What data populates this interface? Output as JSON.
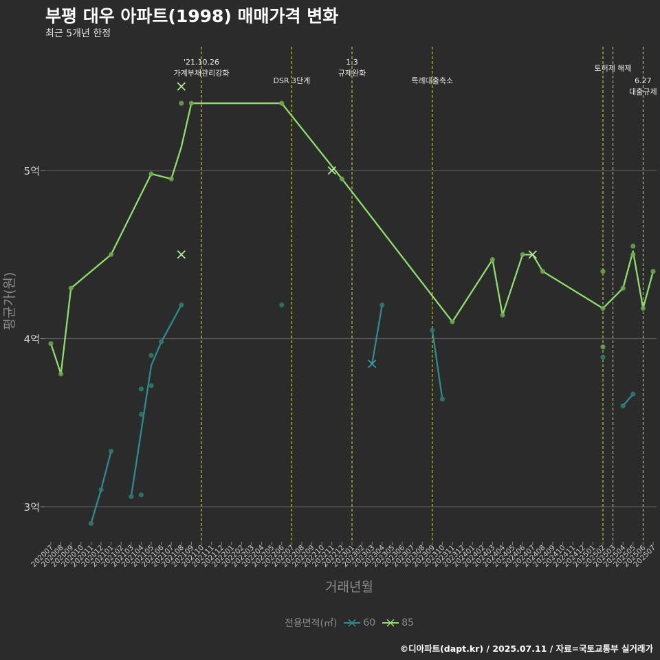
{
  "header": {
    "title": "부평 대우 아파트(1998) 매매가격 변화",
    "subtitle": "최근 5개년 한정"
  },
  "caption": "©디아파트(dapt.kr) / 2025.07.11 / 자료=국토교통부 실거래가",
  "colors": {
    "background": "#2b2b2b",
    "grid": "#5a5a5a",
    "event_line": "#e0e03c",
    "series_60": "#2a8e8f",
    "series_85": "#8fe06b",
    "point_60": "#2e7c6e",
    "point_85": "#6ca84c"
  },
  "chart_data": {
    "type": "line",
    "title": "부평 대우 아파트(1998) 매매가격 변화",
    "xlabel": "거래년월",
    "ylabel": "평균가(원)",
    "ylim": [
      2.8,
      5.8
    ],
    "yticks": [
      {
        "value": 3,
        "label": "3억"
      },
      {
        "value": 4,
        "label": "4억"
      },
      {
        "value": 5,
        "label": "5억"
      }
    ],
    "categories": [
      "202007",
      "202008",
      "202009",
      "202010",
      "202011",
      "202012",
      "202101",
      "202102",
      "202103",
      "202104",
      "202105",
      "202106",
      "202107",
      "202108",
      "202109",
      "202110",
      "202111",
      "202112",
      "202201",
      "202202",
      "202203",
      "202204",
      "202205",
      "202206",
      "202207",
      "202208",
      "202209",
      "202210",
      "202211",
      "202212",
      "202301",
      "202302",
      "202303",
      "202304",
      "202305",
      "202306",
      "202307",
      "202308",
      "202309",
      "202310",
      "202311",
      "202312",
      "202401",
      "202402",
      "202403",
      "202404",
      "202405",
      "202406",
      "202407",
      "202408",
      "202409",
      "202410",
      "202411",
      "202412",
      "202501",
      "202502",
      "202503",
      "202504",
      "202505",
      "202506",
      "202507"
    ],
    "legend_title": "전용면적(㎡)",
    "series": [
      {
        "name": "60",
        "line": [
          {
            "x": "202011",
            "y": 2.9
          },
          {
            "x": "202012",
            "y": 3.1
          },
          {
            "x": "202101",
            "y": 3.33
          }
        ],
        "line_segments": [
          [
            {
              "x": "202011",
              "y": 2.9
            },
            {
              "x": "202012",
              "y": 3.1
            },
            {
              "x": "202101",
              "y": 3.33
            }
          ],
          [
            {
              "x": "202103",
              "y": 3.06
            },
            {
              "x": "202104",
              "y": 3.45
            },
            {
              "x": "202105",
              "y": 3.84
            },
            {
              "x": "202106",
              "y": 3.98
            },
            {
              "x": "202108",
              "y": 4.2
            }
          ],
          [
            {
              "x": "202303",
              "y": 3.85
            },
            {
              "x": "202304",
              "y": 4.2
            }
          ],
          [
            {
              "x": "202309",
              "y": 4.05
            },
            {
              "x": "202310",
              "y": 3.64
            }
          ],
          [
            {
              "x": "202504",
              "y": 3.6
            },
            {
              "x": "202505",
              "y": 3.67
            }
          ]
        ],
        "points": [
          {
            "x": "202011",
            "y": 2.9
          },
          {
            "x": "202012",
            "y": 3.1
          },
          {
            "x": "202101",
            "y": 3.33
          },
          {
            "x": "202103",
            "y": 3.06
          },
          {
            "x": "202104",
            "y": 3.07
          },
          {
            "x": "202104",
            "y": 3.55
          },
          {
            "x": "202104",
            "y": 3.7
          },
          {
            "x": "202105",
            "y": 3.72
          },
          {
            "x": "202105",
            "y": 3.9
          },
          {
            "x": "202106",
            "y": 3.98
          },
          {
            "x": "202108",
            "y": 4.2
          },
          {
            "x": "202206",
            "y": 4.2
          },
          {
            "x": "202304",
            "y": 4.2
          },
          {
            "x": "202309",
            "y": 4.05
          },
          {
            "x": "202310",
            "y": 3.64
          },
          {
            "x": "202502",
            "y": 3.89
          },
          {
            "x": "202504",
            "y": 3.6
          },
          {
            "x": "202505",
            "y": 3.67
          }
        ],
        "crosses": [
          {
            "x": "202303",
            "y": 3.85
          }
        ]
      },
      {
        "name": "85",
        "line": [
          {
            "x": "202007",
            "y": 3.97
          },
          {
            "x": "202008",
            "y": 3.79
          },
          {
            "x": "202009",
            "y": 4.3
          },
          {
            "x": "202101",
            "y": 4.5
          },
          {
            "x": "202105",
            "y": 4.98
          },
          {
            "x": "202107",
            "y": 4.95
          },
          {
            "x": "202108",
            "y": 5.14
          },
          {
            "x": "202109",
            "y": 5.4
          },
          {
            "x": "202206",
            "y": 5.4
          },
          {
            "x": "202212",
            "y": 4.95
          },
          {
            "x": "202311",
            "y": 4.1
          },
          {
            "x": "202403",
            "y": 4.47
          },
          {
            "x": "202404",
            "y": 4.14
          },
          {
            "x": "202406",
            "y": 4.5
          },
          {
            "x": "202407",
            "y": 4.5
          },
          {
            "x": "202408",
            "y": 4.4
          },
          {
            "x": "202502",
            "y": 4.18
          },
          {
            "x": "202504",
            "y": 4.3
          },
          {
            "x": "202505",
            "y": 4.52
          },
          {
            "x": "202506",
            "y": 4.18
          },
          {
            "x": "202507",
            "y": 4.4
          }
        ],
        "points": [
          {
            "x": "202007",
            "y": 3.97
          },
          {
            "x": "202008",
            "y": 3.79
          },
          {
            "x": "202009",
            "y": 4.3
          },
          {
            "x": "202101",
            "y": 4.5
          },
          {
            "x": "202105",
            "y": 4.98
          },
          {
            "x": "202107",
            "y": 4.95
          },
          {
            "x": "202108",
            "y": 5.4
          },
          {
            "x": "202109",
            "y": 5.4
          },
          {
            "x": "202206",
            "y": 5.4
          },
          {
            "x": "202212",
            "y": 4.95
          },
          {
            "x": "202311",
            "y": 4.1
          },
          {
            "x": "202403",
            "y": 4.47
          },
          {
            "x": "202404",
            "y": 4.14
          },
          {
            "x": "202406",
            "y": 4.5
          },
          {
            "x": "202408",
            "y": 4.4
          },
          {
            "x": "202502",
            "y": 4.4
          },
          {
            "x": "202502",
            "y": 3.95
          },
          {
            "x": "202502",
            "y": 4.18
          },
          {
            "x": "202504",
            "y": 4.3
          },
          {
            "x": "202505",
            "y": 4.55
          },
          {
            "x": "202505",
            "y": 4.5
          },
          {
            "x": "202506",
            "y": 4.18
          },
          {
            "x": "202507",
            "y": 4.4
          }
        ],
        "crosses": [
          {
            "x": "202108",
            "y": 5.5
          },
          {
            "x": "202108",
            "y": 4.5
          },
          {
            "x": "202211",
            "y": 5.0
          },
          {
            "x": "202407",
            "y": 4.5
          }
        ]
      }
    ],
    "annotations": [
      {
        "x": "202110",
        "lines": [
          "'21.10.26",
          "가계부채관리강화"
        ],
        "row": 1
      },
      {
        "x": "202207",
        "lines": [
          "DSR 3단계"
        ],
        "row": 2
      },
      {
        "x": "202301",
        "lines": [
          "1.3",
          "규제완화"
        ],
        "row": 1
      },
      {
        "x": "202309",
        "lines": [
          "특례대출축소"
        ],
        "row": 2
      },
      {
        "x": "202502",
        "lines": [],
        "row": 0
      },
      {
        "x": "202503",
        "lines": [
          "토허제 해제"
        ],
        "row": 1.5
      },
      {
        "x": "202506",
        "lines": [
          "6.27",
          "대출규제"
        ],
        "row": 2
      }
    ]
  }
}
